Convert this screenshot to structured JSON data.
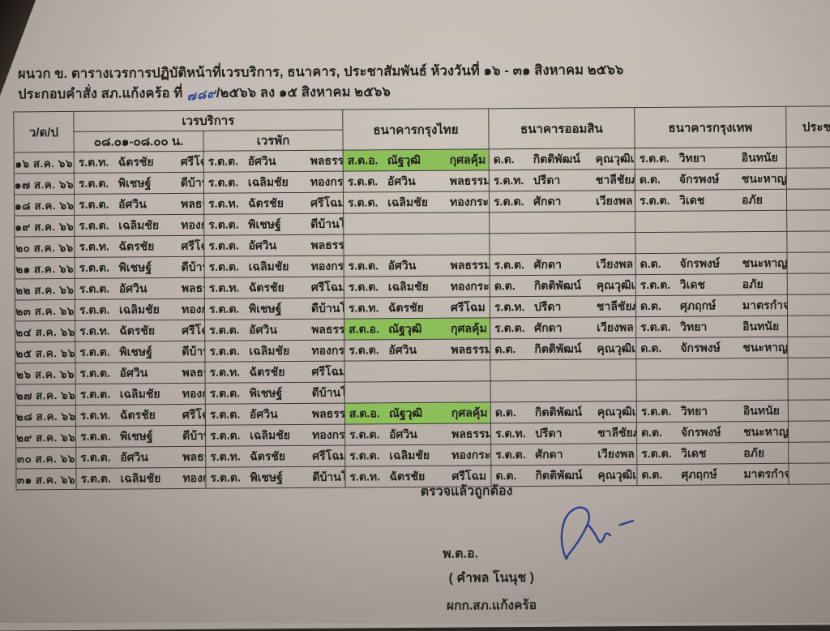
{
  "doc": {
    "title_line1": "ผนวก ข.  ตารางเวรการปฏิบัติหน้าที่เวรบริการ, ธนาคาร, ประชาสัมพันธ์ ห้วงวันที่ ๑๖ - ๓๑ สิงหาคม ๒๕๖๖",
    "order_prefix": "ประกอบคำสั่ง สภ.แก้งคร้อ ที่",
    "order_no_handwritten": "๗๘๙",
    "order_suffix": "/๒๕๖๖  ลง ๑๕ สิงหาคม ๒๕๖๖"
  },
  "table": {
    "highlight_color": "#8cbe5a",
    "headers": {
      "date": "ว/ด/ป",
      "service_group": "เวรบริการ",
      "service_time": "๐๘.๐๑-๐๘.๐๐ น.",
      "service_rest": "เวรพัก",
      "krungthai": "ธนาคารกรุงไทย",
      "aomsin": "ธนาคารออมสิน",
      "krungthep": "ธนาคารกรุงเทพ",
      "pr": "ประชาสัมพ"
    },
    "rows": [
      {
        "d": "๑๖ ส.ค. ๖๖",
        "sv": {
          "r": "ร.ต.ท.",
          "g": "ฉัตรชัย",
          "s": "ศรีโฉม"
        },
        "rp": {
          "r": "ร.ต.ต.",
          "g": "อัศวิน",
          "s": "พลธรรม"
        },
        "ktb": {
          "r": "ส.ต.อ.",
          "g": "ณัฐวุฒิ",
          "s": "กุศลคุ้ม",
          "hl": true
        },
        "gsb": {
          "r": "ด.ต.",
          "g": "กิตติพัฒน์",
          "s": "คุณวุฒิเลิศโกศล"
        },
        "bbl": {
          "r": "ร.ต.ต.",
          "g": "วิทยา",
          "s": "อินทนัย"
        },
        "pr": null
      },
      {
        "d": "๑๗ ส.ค. ๖๖",
        "sv": {
          "r": "ร.ต.ต.",
          "g": "พิเชษฐ์",
          "s": "ดีบ้านโสก"
        },
        "rp": {
          "r": "ร.ต.ต.",
          "g": "เฉลิมชัย",
          "s": "ทองกระโทก"
        },
        "ktb": {
          "r": "ร.ต.ต.",
          "g": "อัศวิน",
          "s": "พลธรรม"
        },
        "gsb": {
          "r": "ร.ต.ท.",
          "g": "ปรีดา",
          "s": "ชาลีชัยภักดิ์"
        },
        "bbl": {
          "r": "ด.ต.",
          "g": "จักรพงษ์",
          "s": "ชนะหาญ"
        },
        "pr": null
      },
      {
        "d": "๑๘ ส.ค. ๖๖",
        "sv": {
          "r": "ร.ต.ต.",
          "g": "อัศวิน",
          "s": "พลธรรม"
        },
        "rp": {
          "r": "ร.ต.ท.",
          "g": "ฉัตรชัย",
          "s": "ศรีโฉม"
        },
        "ktb": {
          "r": "ร.ต.ต.",
          "g": "เฉลิมชัย",
          "s": "ทองกระโทก"
        },
        "gsb": {
          "r": "ร.ต.ต.",
          "g": "ศักดา",
          "s": "เวียงพล"
        },
        "bbl": {
          "r": "ร.ต.ต.",
          "g": "วิเดช",
          "s": "อภัย"
        },
        "pr": null
      },
      {
        "d": "๑๙ ส.ค. ๖๖",
        "sv": {
          "r": "ร.ต.ต.",
          "g": "เฉลิมชัย",
          "s": "ทองกระโทก"
        },
        "rp": {
          "r": "ร.ต.ต.",
          "g": "พิเชษฐ์",
          "s": "ดีบ้านโสก"
        },
        "ktb": null,
        "gsb": null,
        "bbl": null,
        "pr": null
      },
      {
        "d": "๒๐ ส.ค. ๖๖",
        "sv": {
          "r": "ร.ต.ท.",
          "g": "ฉัตรชัย",
          "s": "ศรีโฉม"
        },
        "rp": {
          "r": "ร.ต.ต.",
          "g": "อัศวิน",
          "s": "พลธรรม"
        },
        "ktb": null,
        "gsb": null,
        "bbl": null,
        "pr": null
      },
      {
        "d": "๒๑ ส.ค. ๖๖",
        "sv": {
          "r": "ร.ต.ต.",
          "g": "พิเชษฐ์",
          "s": "ดีบ้านโสก"
        },
        "rp": {
          "r": "ร.ต.ต.",
          "g": "เฉลิมชัย",
          "s": "ทองกระโทก"
        },
        "ktb": {
          "r": "ร.ต.ต.",
          "g": "อัศวิน",
          "s": "พลธรรม"
        },
        "gsb": {
          "r": "ร.ต.ต.",
          "g": "ศักดา",
          "s": "เวียงพล"
        },
        "bbl": {
          "r": "ด.ต.",
          "g": "จักรพงษ์",
          "s": "ชนะหาญ"
        },
        "pr": null
      },
      {
        "d": "๒๒ ส.ค. ๖๖",
        "sv": {
          "r": "ร.ต.ต.",
          "g": "อัศวิน",
          "s": "พลธรรม"
        },
        "rp": {
          "r": "ร.ต.ท.",
          "g": "ฉัตรชัย",
          "s": "ศรีโฉม"
        },
        "ktb": {
          "r": "ร.ต.ต.",
          "g": "เฉลิมชัย",
          "s": "ทองกระโทก"
        },
        "gsb": {
          "r": "ด.ต.",
          "g": "กิตติพัฒน์",
          "s": "คุณวุฒิเลิศโกศล"
        },
        "bbl": {
          "r": "ร.ต.ต.",
          "g": "วิเดช",
          "s": "อภัย"
        },
        "pr": null
      },
      {
        "d": "๒๓ ส.ค. ๖๖",
        "sv": {
          "r": "ร.ต.ต.",
          "g": "เฉลิมชัย",
          "s": "ทองกระโทก"
        },
        "rp": {
          "r": "ร.ต.ต.",
          "g": "พิเชษฐ์",
          "s": "ดีบ้านโสก"
        },
        "ktb": {
          "r": "ร.ต.ท.",
          "g": "ฉัตรชัย",
          "s": "ศรีโฉม"
        },
        "gsb": {
          "r": "ร.ต.ท.",
          "g": "ปรีดา",
          "s": "ชาลีชัยภักดิ์"
        },
        "bbl": {
          "r": "ด.ต.",
          "g": "ศุภฤกษ์",
          "s": "มาตรกำจร"
        },
        "pr": null
      },
      {
        "d": "๒๔ ส.ค. ๖๖",
        "sv": {
          "r": "ร.ต.ท.",
          "g": "ฉัตรชัย",
          "s": "ศรีโฉม"
        },
        "rp": {
          "r": "ร.ต.ต.",
          "g": "อัศวิน",
          "s": "พลธรรม"
        },
        "ktb": {
          "r": "ส.ต.อ.",
          "g": "ณัฐวุฒิ",
          "s": "กุศลคุ้ม",
          "hl": true
        },
        "gsb": {
          "r": "ร.ต.ต.",
          "g": "ศักดา",
          "s": "เวียงพล"
        },
        "bbl": {
          "r": "ร.ต.ต.",
          "g": "วิทยา",
          "s": "อินทนัย"
        },
        "pr": null
      },
      {
        "d": "๒๕ ส.ค. ๖๖",
        "sv": {
          "r": "ร.ต.ต.",
          "g": "พิเชษฐ์",
          "s": "ดีบ้านโสก"
        },
        "rp": {
          "r": "ร.ต.ต.",
          "g": "เฉลิมชัย",
          "s": "ทองกระโทก"
        },
        "ktb": {
          "r": "ร.ต.ต.",
          "g": "อัศวิน",
          "s": "พลธรรม"
        },
        "gsb": {
          "r": "ด.ต.",
          "g": "กิตติพัฒน์",
          "s": "คุณวุฒิเลิศโกศล"
        },
        "bbl": {
          "r": "ด.ต.",
          "g": "จักรพงษ์",
          "s": "ชนะหาญ"
        },
        "pr": null
      },
      {
        "d": "๒๖ ส.ค. ๖๖",
        "sv": {
          "r": "ร.ต.ต.",
          "g": "อัศวิน",
          "s": "พลธรรม"
        },
        "rp": {
          "r": "ร.ต.ท.",
          "g": "ฉัตรชัย",
          "s": "ศรีโฉม"
        },
        "ktb": null,
        "gsb": null,
        "bbl": null,
        "pr": null
      },
      {
        "d": "๒๗ ส.ค. ๖๖",
        "sv": {
          "r": "ร.ต.ต.",
          "g": "เฉลิมชัย",
          "s": "ทองกระโทก"
        },
        "rp": {
          "r": "ร.ต.ต.",
          "g": "พิเชษฐ์",
          "s": "ดีบ้านโสก"
        },
        "ktb": null,
        "gsb": null,
        "bbl": null,
        "pr": null
      },
      {
        "d": "๒๘ ส.ค. ๖๖",
        "sv": {
          "r": "ร.ต.ท.",
          "g": "ฉัตรชัย",
          "s": "ศรีโฉม"
        },
        "rp": {
          "r": "ร.ต.ต.",
          "g": "อัศวิน",
          "s": "พลธรรม"
        },
        "ktb": {
          "r": "ส.ต.อ.",
          "g": "ณัฐวุฒิ",
          "s": "กุศลคุ้ม",
          "hl": true
        },
        "gsb": {
          "r": "ด.ต.",
          "g": "กิตติพัฒน์",
          "s": "คุณวุฒิเลิศโกศล"
        },
        "bbl": {
          "r": "ร.ต.ต.",
          "g": "วิทยา",
          "s": "อินทนัย"
        },
        "pr": null
      },
      {
        "d": "๒๙ ส.ค. ๖๖",
        "sv": {
          "r": "ร.ต.ต.",
          "g": "พิเชษฐ์",
          "s": "ดีบ้านโสก"
        },
        "rp": {
          "r": "ร.ต.ต.",
          "g": "เฉลิมชัย",
          "s": "ทองกระโทก"
        },
        "ktb": {
          "r": "ร.ต.ต.",
          "g": "อัศวิน",
          "s": "พลธรรม"
        },
        "gsb": {
          "r": "ร.ต.ท.",
          "g": "ปรีดา",
          "s": "ชาลีชัยภักดิ์"
        },
        "bbl": {
          "r": "ด.ต.",
          "g": "จักรพงษ์",
          "s": "ชนะหาญ"
        },
        "pr": null
      },
      {
        "d": "๓๐ ส.ค. ๖๖",
        "sv": {
          "r": "ร.ต.ต.",
          "g": "อัศวิน",
          "s": "พลธรรม"
        },
        "rp": {
          "r": "ร.ต.ท.",
          "g": "ฉัตรชัย",
          "s": "ศรีโฉม"
        },
        "ktb": {
          "r": "ร.ต.ต.",
          "g": "เฉลิมชัย",
          "s": "ทองกระโทก"
        },
        "gsb": {
          "r": "ร.ต.ต.",
          "g": "ศักดา",
          "s": "เวียงพล"
        },
        "bbl": {
          "r": "ร.ต.ต.",
          "g": "วิเดช",
          "s": "อภัย"
        },
        "pr": null
      },
      {
        "d": "๓๑ ส.ค. ๖๖",
        "sv": {
          "r": "ร.ต.ต.",
          "g": "เฉลิมชัย",
          "s": "ทองกระโทก"
        },
        "rp": {
          "r": "ร.ต.ต.",
          "g": "พิเชษฐ์",
          "s": "ดีบ้านโสก"
        },
        "ktb": {
          "r": "ร.ต.ท.",
          "g": "ฉัตรชัย",
          "s": "ศรีโฉม"
        },
        "gsb": {
          "r": "ด.ต.",
          "g": "กิตติพัฒน์",
          "s": "คุณวุฒิเลิศโกศล"
        },
        "bbl": {
          "r": "ด.ต.",
          "g": "ศุภฤกษ์",
          "s": "มาตรกำจร"
        },
        "pr": null
      }
    ]
  },
  "footer": {
    "verified": "ตรวจแล้วถูกต้อง",
    "signer_rank": "พ.ต.อ.",
    "signer_name": "( คำพล  โนนุช )",
    "signer_position": "ผกก.สภ.แก้งคร้อ",
    "signature_ink_color": "#2e3e90"
  }
}
